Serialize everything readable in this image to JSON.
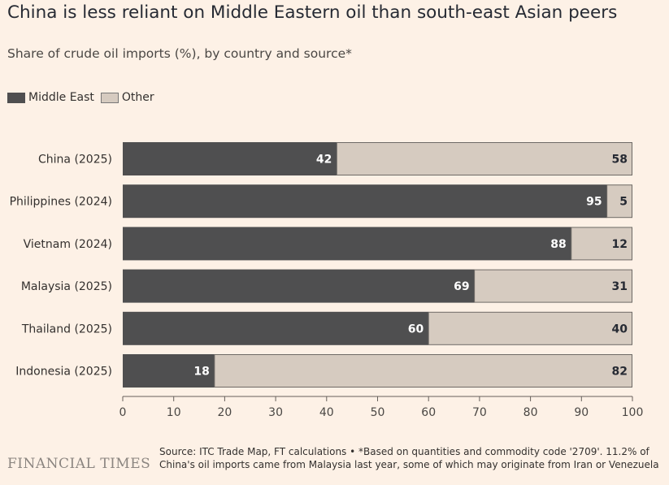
{
  "header": {
    "title": "China is less reliant on Middle Eastern oil than south-east Asian peers",
    "subtitle": "Share of crude oil imports (%), by country and source*"
  },
  "legend": {
    "middle_east": "Middle East",
    "other": "Other"
  },
  "colors": {
    "middle_east": "#4f4f50",
    "other": "#d6cbc0",
    "background": "#fdf1e6"
  },
  "chart_data": {
    "type": "bar",
    "orientation": "horizontal",
    "stacked": true,
    "categories": [
      "China (2025)",
      "Philippines (2024)",
      "Vietnam (2024)",
      "Malaysia (2025)",
      "Thailand (2025)",
      "Indonesia (2025)"
    ],
    "series": [
      {
        "name": "Middle East",
        "values": [
          42,
          95,
          88,
          69,
          60,
          18
        ]
      },
      {
        "name": "Other",
        "values": [
          58,
          5,
          12,
          31,
          40,
          82
        ]
      }
    ],
    "xlim": [
      0,
      100
    ],
    "xticks": [
      0,
      10,
      20,
      30,
      40,
      50,
      60,
      70,
      80,
      90,
      100
    ],
    "title": "China is less reliant on Middle Eastern oil than south-east Asian peers",
    "xlabel": "",
    "ylabel": "",
    "legend_position": "top-left"
  },
  "footer": {
    "brand": "FINANCIAL TIMES",
    "note": "Source: ITC Trade Map, FT calculations • *Based on quantities and commodity code '2709'. 11.2% of China's oil imports came from Malaysia last year, some of which may originate from Iran or Venezuela"
  }
}
